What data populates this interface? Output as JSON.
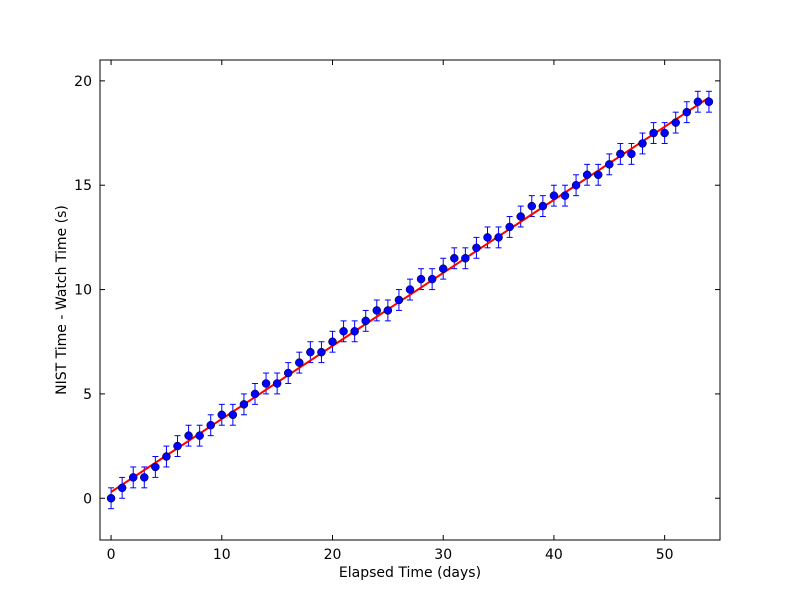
{
  "chart_data": {
    "type": "scatter",
    "xlabel": "Elapsed Time (days)",
    "ylabel": "NIST Time - Watch Time (s)",
    "xlim": [
      -1,
      55
    ],
    "ylim": [
      -2,
      21
    ],
    "xticks": [
      0,
      10,
      20,
      30,
      40,
      50
    ],
    "yticks": [
      0,
      5,
      10,
      15,
      20
    ],
    "grid": false,
    "legend": "none",
    "series": [
      {
        "kind": "points-with-errorbars",
        "color": "#0000ff",
        "errorbar_color": "#0000ff",
        "error": 0.5,
        "x": [
          0,
          1,
          2,
          3,
          4,
          5,
          6,
          7,
          8,
          9,
          10,
          11,
          12,
          13,
          14,
          15,
          16,
          17,
          18,
          19,
          20,
          21,
          22,
          23,
          24,
          25,
          26,
          27,
          28,
          29,
          30,
          31,
          32,
          33,
          34,
          35,
          36,
          37,
          38,
          39,
          40,
          41,
          42,
          43,
          44,
          45,
          46,
          47,
          48,
          49,
          50,
          51,
          52,
          53,
          54
        ],
        "y": [
          0,
          0.5,
          1,
          1,
          1.5,
          2,
          2.5,
          3,
          3,
          3.5,
          4,
          4,
          4.5,
          5,
          5.5,
          5.5,
          6,
          6.5,
          7,
          7,
          7.5,
          8,
          8,
          8.5,
          9,
          9,
          9.5,
          10,
          10.5,
          10.5,
          11,
          11.5,
          11.5,
          12,
          12.5,
          12.5,
          13,
          13.5,
          14,
          14,
          14.5,
          14.5,
          15,
          15.5,
          15.5,
          16,
          16.5,
          16.5,
          17,
          17.5,
          17.5,
          18,
          18.5,
          19,
          19
        ]
      },
      {
        "kind": "fit-line",
        "color": "#ff0000",
        "x": [
          0,
          54
        ],
        "y": [
          0.3,
          19.2
        ]
      }
    ]
  }
}
